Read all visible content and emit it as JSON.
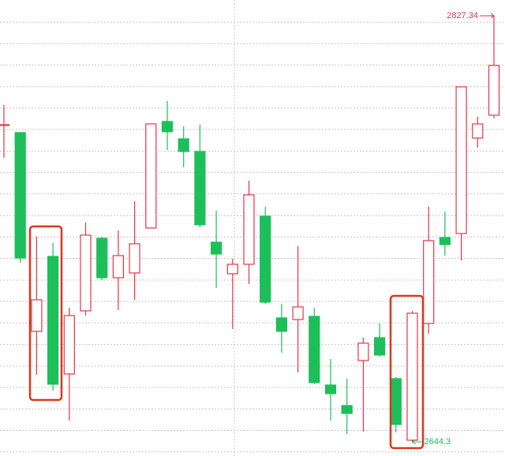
{
  "chart_data": {
    "type": "candlestick",
    "open": [
      2780.56,
      2777.17,
      2691.76,
      2723.96,
      2673.45,
      2700.57,
      2731.75,
      2714.8,
      2716.84,
      2736.16,
      2781.92,
      2774.46,
      2769.04,
      2730.06,
      2716.5,
      2720.57,
      2741.24,
      2697.52,
      2696.84,
      2698.2,
      2668.71,
      2659.89,
      2679.22,
      2689.04,
      2671.42,
      2644.98,
      2695.15,
      2732.09,
      2733.79,
      2774.8,
      2784.63
    ],
    "high": [
      2789.04,
      2777.17,
      2732.43,
      2729.72,
      2701.92,
      2738.53,
      2732.43,
      2735.14,
      2747.68,
      2780.9,
      2790.73,
      2779.89,
      2780.56,
      2743.62,
      2722.94,
      2756.5,
      2745.31,
      2703.62,
      2728.36,
      2701.92,
      2679.89,
      2671.42,
      2689.04,
      2695.15,
      2672.1,
      2700.57,
      2745.31,
      2743.28,
      2796.83,
      2783.95,
      2827.34
    ],
    "low": [
      2766.33,
      2721.25,
      2673.11,
      2666.33,
      2653.45,
      2698.54,
      2713.79,
      2700.91,
      2705.31,
      2736.16,
      2769.72,
      2762.26,
      2736.5,
      2710.4,
      2692.77,
      2712.09,
      2703.62,
      2682.6,
      2674.13,
      2669.05,
      2653.45,
      2647.69,
      2648.71,
      2680.91,
      2648.37,
      2644.3,
      2690.74,
      2724.3,
      2722.26,
      2770.73,
      2783.28
    ],
    "close": [
      2780.56,
      2723.28,
      2705.31,
      2669.05,
      2698.54,
      2733.11,
      2714.8,
      2724.3,
      2729.38,
      2780.9,
      2777.51,
      2769.04,
      2737.52,
      2724.97,
      2720.57,
      2750.4,
      2704.3,
      2691.76,
      2702.26,
      2669.72,
      2664.98,
      2656.5,
      2686.67,
      2681.59,
      2651.76,
      2699.55,
      2730.74,
      2729.04,
      2796.83,
      2780.9,
      2805.99
    ],
    "up_color": "#e8334a",
    "down_color": "#1dbf5a",
    "ylim": [
      2638.2,
      2834.12
    ],
    "yticks": [
      2824.6,
      2815.4,
      2806.2,
      2796.9,
      2787.7,
      2778.5,
      2769.2,
      2760.0,
      2750.8,
      2741.5,
      2732.3,
      2723.1,
      2713.8,
      2704.6,
      2695.4,
      2686.1,
      2676.9,
      2667.7,
      2658.4,
      2649.2,
      2640.0
    ],
    "grid": true,
    "annotations": [
      "2827.34",
      "2644.3"
    ]
  }
}
